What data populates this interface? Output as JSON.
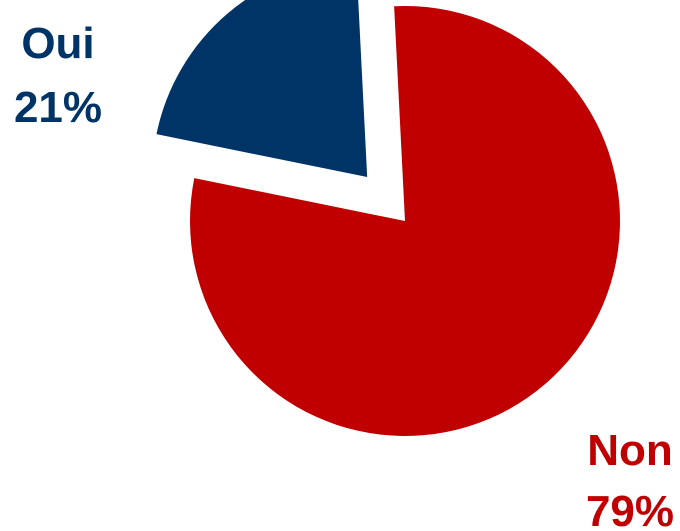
{
  "chart_data": {
    "type": "pie",
    "categories": [
      "Oui",
      "Non"
    ],
    "values": [
      21,
      79
    ],
    "value_labels": [
      "21%",
      "79%"
    ],
    "colors": [
      "#003366",
      "#C00000"
    ],
    "exploded": [
      "Oui"
    ],
    "legend": "none"
  }
}
